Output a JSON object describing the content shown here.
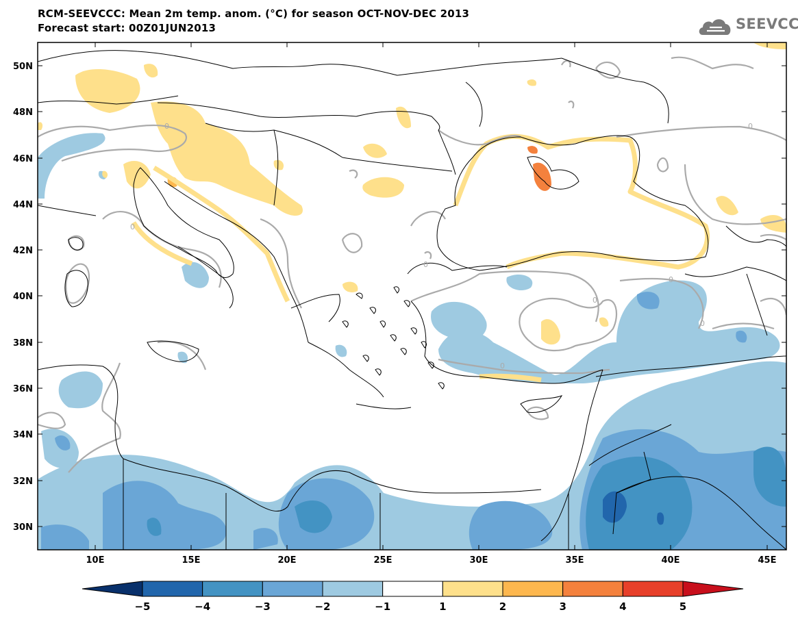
{
  "header": {
    "title_line1": "RCM-SEEVCCC: Mean 2m temp. anom. (°C) for season OCT-NOV-DEC 2013",
    "title_line2": "Forecast start: 00Z01JUN2013"
  },
  "logo": {
    "text": "SEEVCCC",
    "icon": "cloud-icon",
    "color": "#7a7a7a"
  },
  "map": {
    "lon_range": [
      7,
      46
    ],
    "lat_range": [
      29,
      51
    ],
    "lat_ticks": [
      "50N",
      "48N",
      "46N",
      "44N",
      "42N",
      "40N",
      "38N",
      "36N",
      "34N",
      "32N",
      "30N"
    ],
    "lon_ticks": [
      "10E",
      "15E",
      "20E",
      "25E",
      "30E",
      "35E",
      "40E",
      "45E"
    ],
    "contour_label": "0",
    "sea_color": "#ffffff",
    "contour_color": "#aaaaaa"
  },
  "colorbar": {
    "labels": [
      "−5",
      "−4",
      "−3",
      "−2",
      "−1",
      "1",
      "2",
      "3",
      "4",
      "5"
    ],
    "colors": [
      "#08306b",
      "#2166ac",
      "#4393c3",
      "#6aa6d6",
      "#9ecae1",
      "#ffffff",
      "#fee08b",
      "#fdb74e",
      "#f4813d",
      "#e7402a",
      "#c80f1c"
    ]
  }
}
